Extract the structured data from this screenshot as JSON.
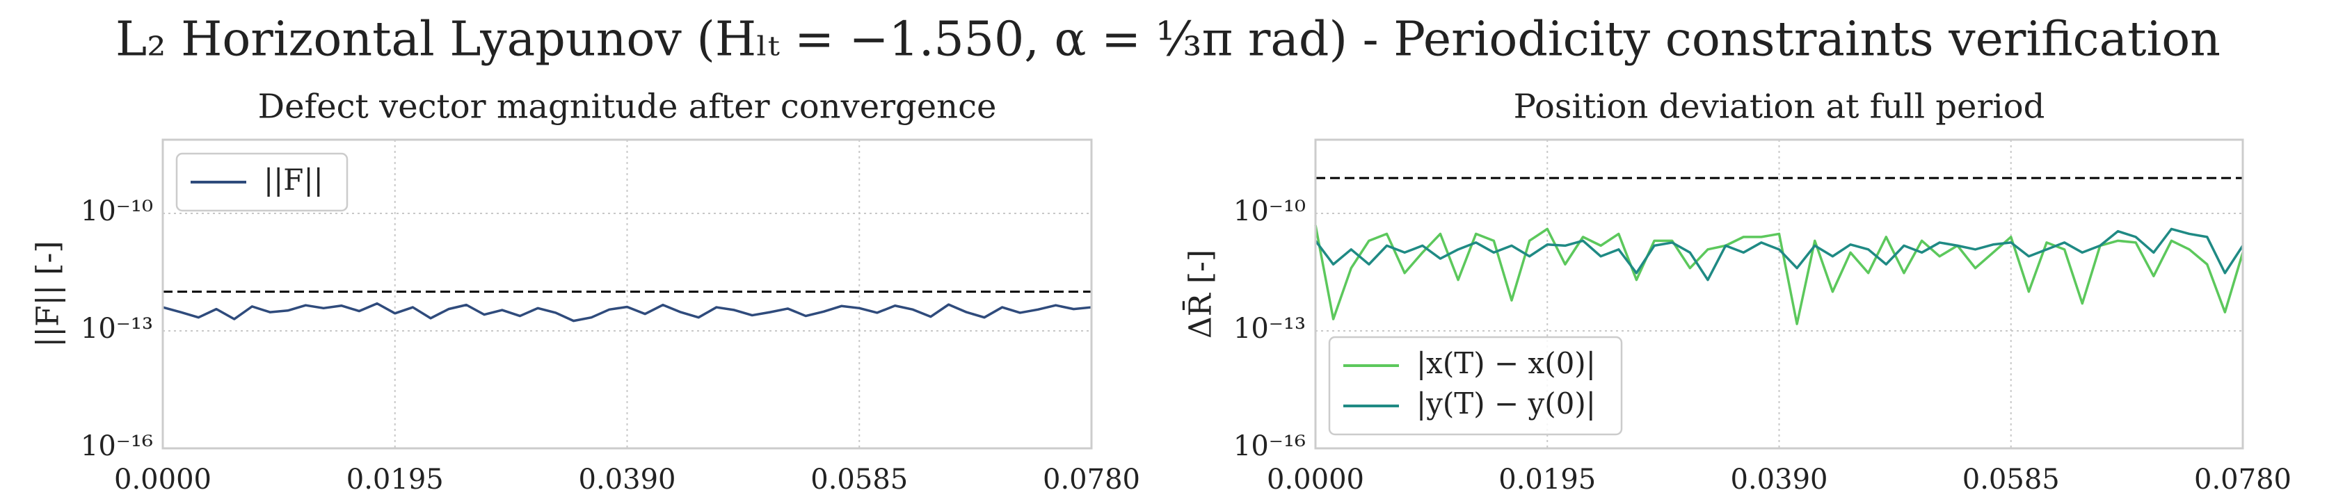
{
  "suptitle": "L₂ Horizontal Lyapunov (Hₗₜ = −1.550, α = ⅓π rad) - Periodicity constraints verification",
  "chart_data": [
    {
      "type": "line",
      "title": "Defect vector magnitude after convergence",
      "ylabel": "||F|| [-]",
      "x": [
        0,
        0.0015,
        0.003,
        0.0045,
        0.006,
        0.0075,
        0.009,
        0.0105,
        0.012,
        0.0135,
        0.015,
        0.0165,
        0.018,
        0.0195,
        0.021,
        0.0225,
        0.024,
        0.0255,
        0.027,
        0.0285,
        0.03,
        0.0315,
        0.033,
        0.0345,
        0.036,
        0.0375,
        0.039,
        0.0405,
        0.042,
        0.0435,
        0.045,
        0.0465,
        0.048,
        0.0495,
        0.051,
        0.0525,
        0.054,
        0.0555,
        0.057,
        0.0585,
        0.06,
        0.0615,
        0.063,
        0.0645,
        0.066,
        0.0675,
        0.069,
        0.0705,
        0.072,
        0.0735,
        0.075,
        0.0765,
        0.078
      ],
      "series": [
        {
          "name": "||F||",
          "color": "#2f4b7c",
          "values": [
            4e-13,
            3e-13,
            2.2e-13,
            3.6e-13,
            2e-13,
            4.2e-13,
            3e-13,
            3.3e-13,
            4.5e-13,
            3.8e-13,
            4.4e-13,
            3.2e-13,
            5e-13,
            2.8e-13,
            4e-13,
            2.1e-13,
            3.6e-13,
            4.6e-13,
            2.6e-13,
            3.4e-13,
            2.4e-13,
            3.8e-13,
            2.9e-13,
            1.8e-13,
            2.2e-13,
            3.5e-13,
            4.1e-13,
            2.7e-13,
            4.6e-13,
            3e-13,
            2.2e-13,
            4e-13,
            3.4e-13,
            2.5e-13,
            3e-13,
            3.7e-13,
            2.4e-13,
            3.1e-13,
            4.3e-13,
            3.8e-13,
            2.9e-13,
            4.4e-13,
            3.5e-13,
            2.3e-13,
            4.7e-13,
            3e-13,
            2.2e-13,
            4e-13,
            2.9e-13,
            3.5e-13,
            4.5e-13,
            3.6e-13,
            4e-13
          ]
        }
      ],
      "reference_line": {
        "value": 1e-12,
        "color": "#000000",
        "style": "dashed"
      },
      "xlim": [
        0,
        0.078
      ],
      "xticks": [
        {
          "value": 0,
          "label": "0.0000"
        },
        {
          "value": 0.0195,
          "label": "0.0195"
        },
        {
          "value": 0.039,
          "label": "0.0390"
        },
        {
          "value": 0.0585,
          "label": "0.0585"
        },
        {
          "value": 0.078,
          "label": "0.0780"
        }
      ],
      "ylim": [
        1e-16,
        7.6e-09
      ],
      "log_y": true,
      "yticks": [
        {
          "value": 1e-16,
          "label": "10⁻¹⁶"
        },
        {
          "value": 1e-13,
          "label": "10⁻¹³"
        },
        {
          "value": 1e-10,
          "label": "10⁻¹⁰"
        }
      ],
      "grid": true,
      "legend": "upper left"
    },
    {
      "type": "line",
      "title": "Position deviation at full period",
      "ylabel": "ΔR̄ [-]",
      "x": [
        0,
        0.0015,
        0.003,
        0.0045,
        0.006,
        0.0075,
        0.009,
        0.0105,
        0.012,
        0.0135,
        0.015,
        0.0165,
        0.018,
        0.0195,
        0.021,
        0.0225,
        0.024,
        0.0255,
        0.027,
        0.0285,
        0.03,
        0.0315,
        0.033,
        0.0345,
        0.036,
        0.0375,
        0.039,
        0.0405,
        0.042,
        0.0435,
        0.045,
        0.0465,
        0.048,
        0.0495,
        0.051,
        0.0525,
        0.054,
        0.0555,
        0.057,
        0.0585,
        0.06,
        0.0615,
        0.063,
        0.0645,
        0.066,
        0.0675,
        0.069,
        0.0705,
        0.072,
        0.0735,
        0.075,
        0.0765,
        0.078
      ],
      "series": [
        {
          "name": "|x(T) − x(0)|",
          "color": "#5cc85c",
          "values": [
            5e-11,
            2e-13,
            4e-12,
            2e-11,
            3e-11,
            3e-12,
            1e-11,
            3e-11,
            2e-12,
            3e-11,
            2e-11,
            6e-13,
            2e-11,
            4e-11,
            5e-12,
            2.5e-11,
            1.5e-11,
            3e-11,
            2e-12,
            2e-11,
            2e-11,
            4e-12,
            1.2e-11,
            1.5e-11,
            2.5e-11,
            2.5e-11,
            3e-11,
            1.5e-13,
            2e-11,
            1e-12,
            1e-11,
            3e-12,
            2.5e-11,
            3e-12,
            2e-11,
            8e-12,
            1.5e-11,
            4e-12,
            1e-11,
            2.5e-11,
            1e-12,
            1.8e-11,
            1.2e-11,
            5e-13,
            1.5e-11,
            2e-11,
            1.8e-11,
            2.5e-12,
            2e-11,
            1.2e-11,
            5e-12,
            3e-13,
            1e-11
          ]
        },
        {
          "name": "|y(T) − y(0)|",
          "color": "#1f8a84",
          "values": [
            2e-11,
            5e-12,
            1.2e-11,
            5e-12,
            1.5e-11,
            1e-11,
            1.5e-11,
            7e-12,
            1.2e-11,
            1.8e-11,
            1e-11,
            1.5e-11,
            8e-12,
            1.6e-11,
            1.5e-11,
            2e-11,
            8e-12,
            1.2e-11,
            3e-12,
            1.5e-11,
            1.8e-11,
            1e-11,
            2e-12,
            1.5e-11,
            1e-11,
            1.8e-11,
            1.2e-11,
            4e-12,
            1.5e-11,
            8e-12,
            1.6e-11,
            1.2e-11,
            5e-12,
            1.5e-11,
            1e-11,
            1.8e-11,
            1.5e-11,
            1.2e-11,
            1.6e-11,
            1.8e-11,
            8e-12,
            1.2e-11,
            1.8e-11,
            1e-11,
            1.5e-11,
            3.5e-11,
            2.5e-11,
            1e-11,
            4e-11,
            3e-11,
            2.5e-11,
            3e-12,
            1.5e-11
          ]
        }
      ],
      "reference_line": {
        "value": 8e-10,
        "color": "#000000",
        "style": "dashed"
      },
      "xlim": [
        0,
        0.078
      ],
      "xticks": [
        {
          "value": 0,
          "label": "0.0000"
        },
        {
          "value": 0.0195,
          "label": "0.0195"
        },
        {
          "value": 0.039,
          "label": "0.0390"
        },
        {
          "value": 0.0585,
          "label": "0.0585"
        },
        {
          "value": 0.078,
          "label": "0.0780"
        }
      ],
      "ylim": [
        1e-16,
        7.6e-09
      ],
      "log_y": true,
      "yticks": [
        {
          "value": 1e-16,
          "label": "10⁻¹⁶"
        },
        {
          "value": 1e-13,
          "label": "10⁻¹³"
        },
        {
          "value": 1e-10,
          "label": "10⁻¹⁰"
        }
      ],
      "grid": true,
      "legend": "lower left"
    }
  ]
}
